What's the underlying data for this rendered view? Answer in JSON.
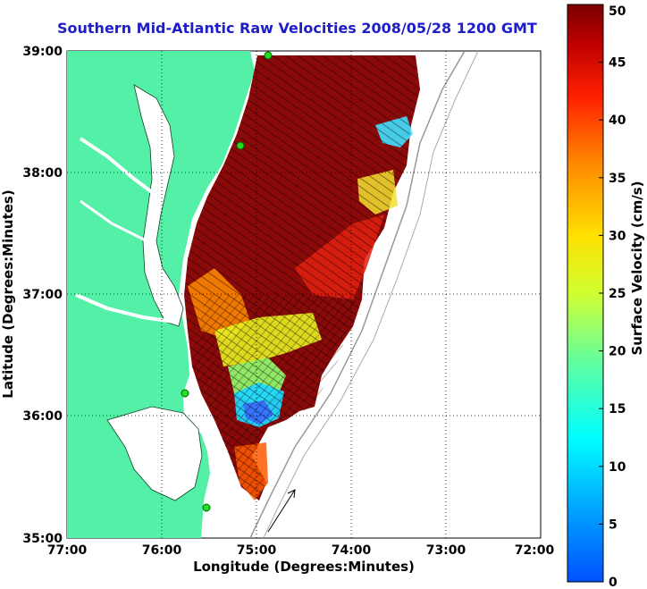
{
  "title": "Southern Mid-Atlantic Raw Velocities 2008/05/28 1200 GMT",
  "axes": {
    "xlabel": "Longitude (Degrees:Minutes)",
    "ylabel": "Latitude (Degrees:Minutes)",
    "xticks": [
      "77:00",
      "76:00",
      "75:00",
      "74:00",
      "73:00",
      "72:00"
    ],
    "yticks": [
      "39:00",
      "38:00",
      "37:00",
      "36:00",
      "35:00"
    ]
  },
  "colorbar": {
    "label": "Surface Velocity (cm/s)",
    "min": 0,
    "max": 50,
    "ticks": [
      "0",
      "5",
      "10",
      "15",
      "20",
      "25",
      "30",
      "35",
      "40",
      "45",
      "50"
    ],
    "colormap": "jet"
  },
  "colors": {
    "land": "#55f0a8",
    "title": "#1e1ec8",
    "arrows": "#000000",
    "stations": "#22dd22",
    "bathymetry": "#999999"
  },
  "map": {
    "lon_range": [
      -77,
      -72
    ],
    "lat_range": [
      35,
      39
    ],
    "grid": "dotted",
    "reference_vector": "unlabeled arrow at lower-left of field"
  }
}
